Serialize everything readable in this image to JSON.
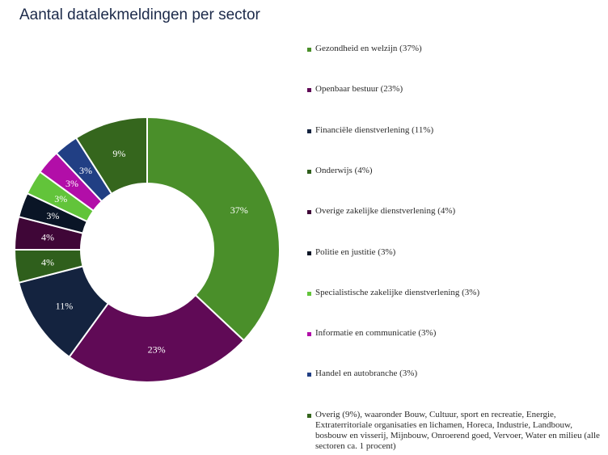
{
  "title": "Aantal datalekmeldingen per sector",
  "chart_data": {
    "type": "pie",
    "title": "Aantal datalekmeldingen per sector",
    "slices": [
      {
        "label": "Gezondheid en welzijn (37%)",
        "value": 37,
        "display": "37%",
        "color": "#4a8f2a"
      },
      {
        "label": "Openbaar bestuur (23%)",
        "value": 23,
        "display": "23%",
        "color": "#600a56"
      },
      {
        "label": "Financiële dienstverlening (11%)",
        "value": 11,
        "display": "11%",
        "color": "#14233f"
      },
      {
        "label": "Onderwijs (4%)",
        "value": 4,
        "display": "4%",
        "color": "#2f5f1c"
      },
      {
        "label": "Overige zakelijke dienstverlening (4%)",
        "value": 4,
        "display": "4%",
        "color": "#3f0637"
      },
      {
        "label": "Politie en justitie (3%)",
        "value": 3,
        "display": "3%",
        "color": "#0a1526"
      },
      {
        "label": "Specialistische zakelijke dienstverlening (3%)",
        "value": 3,
        "display": "3%",
        "color": "#62c43a"
      },
      {
        "label": "Informatie en communicatie (3%)",
        "value": 3,
        "display": "3%",
        "color": "#b20ea8"
      },
      {
        "label": "Handel en autobranche (3%)",
        "value": 3,
        "display": "3%",
        "color": "#213f84"
      },
      {
        "label": "Overig (9%), waaronder Bouw, Cultuur, sport en recreatie, Energie, Extraterritoriale organisaties en lichamen, Horeca, Industrie, Landbouw, bosbouw en visserij, Mijnbouw, Onroerend goed, Vervoer, Water en milieu (alle sectoren ca. 1 procent)",
        "value": 9,
        "display": "9%",
        "color": "#35661d"
      }
    ],
    "legend_position": "right"
  }
}
